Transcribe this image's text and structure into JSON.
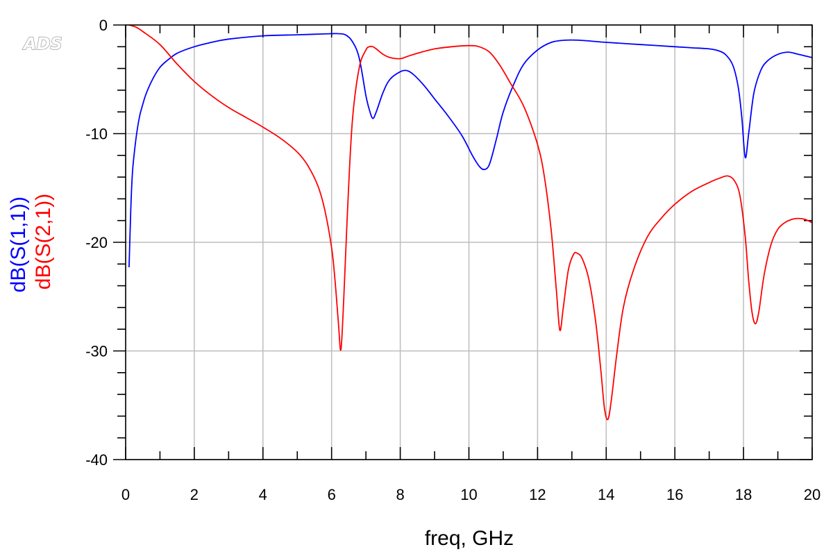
{
  "logo": {
    "text": "ADS"
  },
  "chart_data": {
    "type": "line",
    "title": "",
    "xlabel": "freq, GHz",
    "ylabel_parts": [
      "dB(S(1,1))",
      "dB(S(2,1))"
    ],
    "xlim": [
      0,
      20
    ],
    "ylim": [
      -40,
      0
    ],
    "xticks": [
      0,
      2,
      4,
      6,
      8,
      10,
      12,
      14,
      16,
      18,
      20
    ],
    "yticks": [
      0,
      -10,
      -20,
      -30,
      -40
    ],
    "grid": true,
    "legend": "none (series named by colored y-axis label)",
    "series": [
      {
        "name": "dB(S(1,1))",
        "color": "#0000ff",
        "x": [
          0.1,
          0.15,
          0.2,
          0.3,
          0.4,
          0.5,
          0.6,
          0.8,
          1.0,
          1.2,
          1.5,
          2.0,
          2.5,
          3.0,
          4.0,
          5.0,
          5.5,
          6.0,
          6.2,
          6.4,
          6.6,
          6.8,
          7.0,
          7.1,
          7.2,
          7.3,
          7.5,
          7.7,
          8.0,
          8.2,
          8.4,
          8.7,
          9.0,
          9.4,
          9.8,
          10.1,
          10.3,
          10.45,
          10.6,
          10.8,
          11.0,
          11.3,
          11.6,
          12.0,
          12.4,
          12.8,
          13.2,
          14.0,
          15.0,
          16.0,
          16.5,
          17.0,
          17.3,
          17.5,
          17.7,
          17.85,
          17.95,
          18.05,
          18.15,
          18.3,
          18.5,
          18.7,
          19.0,
          19.3,
          19.6,
          20.0
        ],
        "y": [
          -22.3,
          -17.0,
          -13.5,
          -10.5,
          -8.5,
          -7.3,
          -6.3,
          -4.9,
          -3.9,
          -3.3,
          -2.6,
          -2.0,
          -1.6,
          -1.3,
          -1.0,
          -0.9,
          -0.85,
          -0.8,
          -0.8,
          -0.9,
          -1.5,
          -3.0,
          -6.5,
          -7.8,
          -8.6,
          -8.0,
          -6.2,
          -5.0,
          -4.3,
          -4.2,
          -4.6,
          -5.6,
          -6.8,
          -8.4,
          -10.2,
          -12.0,
          -13.0,
          -13.3,
          -12.8,
          -10.5,
          -8.0,
          -5.5,
          -3.6,
          -2.3,
          -1.6,
          -1.4,
          -1.4,
          -1.6,
          -1.8,
          -2.0,
          -2.1,
          -2.2,
          -2.4,
          -2.8,
          -3.8,
          -5.8,
          -8.5,
          -12.2,
          -10.0,
          -6.3,
          -4.2,
          -3.3,
          -2.7,
          -2.5,
          -2.7,
          -3.0
        ]
      },
      {
        "name": "dB(S(2,1))",
        "color": "#ff0000",
        "x": [
          0.1,
          0.3,
          0.5,
          1.0,
          1.5,
          2.0,
          2.5,
          3.0,
          3.5,
          4.0,
          4.5,
          5.0,
          5.3,
          5.6,
          5.8,
          6.0,
          6.1,
          6.2,
          6.27,
          6.35,
          6.45,
          6.6,
          6.8,
          7.0,
          7.1,
          7.2,
          7.3,
          7.5,
          7.7,
          8.0,
          8.2,
          8.5,
          9.0,
          9.5,
          10.0,
          10.3,
          10.6,
          10.9,
          11.2,
          11.6,
          12.0,
          12.2,
          12.4,
          12.55,
          12.65,
          12.75,
          12.9,
          13.05,
          13.15,
          13.3,
          13.5,
          13.7,
          13.85,
          13.95,
          14.05,
          14.15,
          14.3,
          14.5,
          14.8,
          15.2,
          15.6,
          16.0,
          16.5,
          17.0,
          17.3,
          17.55,
          17.75,
          17.9,
          18.05,
          18.15,
          18.25,
          18.35,
          18.45,
          18.6,
          18.8,
          19.0,
          19.2,
          19.4,
          19.6,
          19.8,
          20.0
        ],
        "y": [
          0.0,
          -0.2,
          -0.6,
          -1.8,
          -3.6,
          -5.2,
          -6.5,
          -7.6,
          -8.5,
          -9.4,
          -10.4,
          -11.7,
          -12.9,
          -14.8,
          -17.0,
          -20.5,
          -23.5,
          -27.5,
          -29.9,
          -25.5,
          -18.0,
          -9.0,
          -4.0,
          -2.3,
          -2.0,
          -2.0,
          -2.2,
          -2.7,
          -3.0,
          -3.1,
          -2.9,
          -2.6,
          -2.2,
          -2.0,
          -1.9,
          -2.0,
          -2.5,
          -3.7,
          -5.3,
          -7.5,
          -11.0,
          -14.0,
          -19.0,
          -24.5,
          -28.1,
          -26.0,
          -22.5,
          -21.1,
          -21.0,
          -21.5,
          -23.5,
          -27.5,
          -32.0,
          -35.3,
          -36.3,
          -34.5,
          -30.5,
          -26.0,
          -22.5,
          -19.5,
          -17.8,
          -16.5,
          -15.3,
          -14.5,
          -14.1,
          -13.9,
          -14.4,
          -15.8,
          -19.5,
          -23.5,
          -26.5,
          -27.5,
          -26.3,
          -23.0,
          -20.2,
          -18.8,
          -18.2,
          -17.9,
          -17.8,
          -17.9,
          -18.2
        ]
      }
    ]
  }
}
